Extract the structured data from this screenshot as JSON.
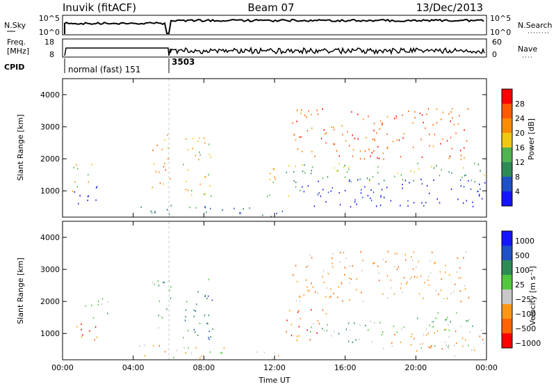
{
  "header": {
    "station": "Inuvik (fitACF)",
    "beam": "Beam 07",
    "date": "13/Dec/2013"
  },
  "noise_panel": {
    "left_label": "N.Sky",
    "right_label": "N.Search",
    "left_ticks": [
      "10^5",
      "10^0"
    ],
    "right_ticks": [
      "10^5",
      "10^0"
    ]
  },
  "freq_panel": {
    "left_label_1": "Freq.",
    "left_label_2": "[MHz]",
    "right_label": "Nave",
    "left_ticks": [
      "18",
      "8"
    ],
    "right_ticks": [
      "60",
      "0"
    ]
  },
  "cpid": {
    "label": "CPID",
    "program_1": "normal (fast) 151",
    "program_2": "3503"
  },
  "colors": {
    "power_scale": [
      "#1414ff",
      "#1e50c8",
      "#2d8c55",
      "#50b450",
      "#f0c814",
      "#ff8c00",
      "#ff5a00",
      "#ff0000"
    ],
    "velocity_scale": [
      "#1414ff",
      "#1e50c8",
      "#2d8c55",
      "#50c83c",
      "#c8c8c8",
      "#ff9614",
      "#ff6400",
      "#ff0000"
    ]
  },
  "chart_data": [
    {
      "type": "heatmap",
      "title": "",
      "xlabel": "",
      "ylabel": "Slant Range [km]",
      "x_ticks": [
        "00:00",
        "04:00",
        "08:00",
        "12:00",
        "16:00",
        "20:00",
        "00:00"
      ],
      "y_ticks": [
        "1000",
        "2000",
        "3000",
        "4000"
      ],
      "x_range_hours": [
        0,
        24
      ],
      "ylim_km": [
        180,
        4500
      ],
      "colorbar": {
        "label": "Power [dB]",
        "ticks": [
          "28",
          "24",
          "20",
          "16",
          "12",
          "8",
          "4"
        ],
        "range": [
          0,
          30
        ]
      },
      "scatter_regions": [
        {
          "t": [
            0.5,
            1.7
          ],
          "r": [
            1000,
            1900
          ],
          "level": 3
        },
        {
          "t": [
            0.5,
            2.0
          ],
          "r": [
            500,
            1200
          ],
          "level": 7
        },
        {
          "t": [
            4.2,
            6.0
          ],
          "r": [
            300,
            700
          ],
          "level": 6
        },
        {
          "t": [
            5.0,
            6.2
          ],
          "r": [
            1100,
            2800
          ],
          "level": 2
        },
        {
          "t": [
            6.0,
            10.5
          ],
          "r": [
            250,
            600
          ],
          "level": 5
        },
        {
          "t": [
            6.8,
            8.5
          ],
          "r": [
            800,
            2900
          ],
          "level": 3
        },
        {
          "t": [
            10.5,
            12.5
          ],
          "r": [
            200,
            500
          ],
          "level": 6
        },
        {
          "t": [
            11.5,
            12.5
          ],
          "r": [
            800,
            1900
          ],
          "level": 3
        },
        {
          "t": [
            12.6,
            14.0
          ],
          "r": [
            800,
            1900
          ],
          "level": 4
        },
        {
          "t": [
            13.5,
            24.0
          ],
          "r": [
            500,
            1400
          ],
          "level": 7
        },
        {
          "t": [
            14.0,
            24.0
          ],
          "r": [
            1300,
            1900
          ],
          "level": 4
        },
        {
          "t": [
            13.0,
            23.0
          ],
          "r": [
            2000,
            3600
          ],
          "level": 1
        }
      ]
    },
    {
      "type": "heatmap",
      "title": "",
      "xlabel": "Time UT",
      "ylabel": "Slant Range [km]",
      "x_ticks": [
        "00:00",
        "04:00",
        "08:00",
        "12:00",
        "16:00",
        "20:00",
        "00:00"
      ],
      "y_ticks": [
        "1000",
        "2000",
        "3000",
        "4000"
      ],
      "x_range_hours": [
        0,
        24
      ],
      "ylim_km": [
        180,
        4500
      ],
      "colorbar": {
        "label": "Velocity [m s⁻¹]",
        "ticks": [
          "1000",
          "500",
          "100",
          "25",
          "−25",
          "−100",
          "−500",
          "−1000"
        ],
        "range": [
          -1200,
          1200
        ]
      },
      "scatter_regions": [
        {
          "t": [
            0.6,
            2.0
          ],
          "r": [
            600,
            1400
          ],
          "level": 6
        },
        {
          "t": [
            1.0,
            2.8
          ],
          "r": [
            1500,
            2100
          ],
          "level": 3
        },
        {
          "t": [
            4.2,
            6.0
          ],
          "r": [
            300,
            700
          ],
          "level": 5
        },
        {
          "t": [
            5.0,
            6.2
          ],
          "r": [
            1100,
            2700
          ],
          "level": 3
        },
        {
          "t": [
            6.0,
            10.5
          ],
          "r": [
            250,
            600
          ],
          "level": 4
        },
        {
          "t": [
            6.8,
            8.5
          ],
          "r": [
            800,
            2900
          ],
          "level": 2
        },
        {
          "t": [
            10.5,
            12.5
          ],
          "r": [
            200,
            500
          ],
          "level": 4
        },
        {
          "t": [
            12.6,
            15.0
          ],
          "r": [
            800,
            1800
          ],
          "level": 6
        },
        {
          "t": [
            14.0,
            19.0
          ],
          "r": [
            700,
            1400
          ],
          "level": 3
        },
        {
          "t": [
            18.0,
            24.0
          ],
          "r": [
            500,
            1200
          ],
          "level": 5
        },
        {
          "t": [
            19.0,
            24.0
          ],
          "r": [
            1100,
            1700
          ],
          "level": 3
        },
        {
          "t": [
            20.0,
            24.0
          ],
          "r": [
            300,
            700
          ],
          "level": 4
        },
        {
          "t": [
            13.0,
            23.0
          ],
          "r": [
            2000,
            3600
          ],
          "level": 5
        }
      ]
    }
  ]
}
